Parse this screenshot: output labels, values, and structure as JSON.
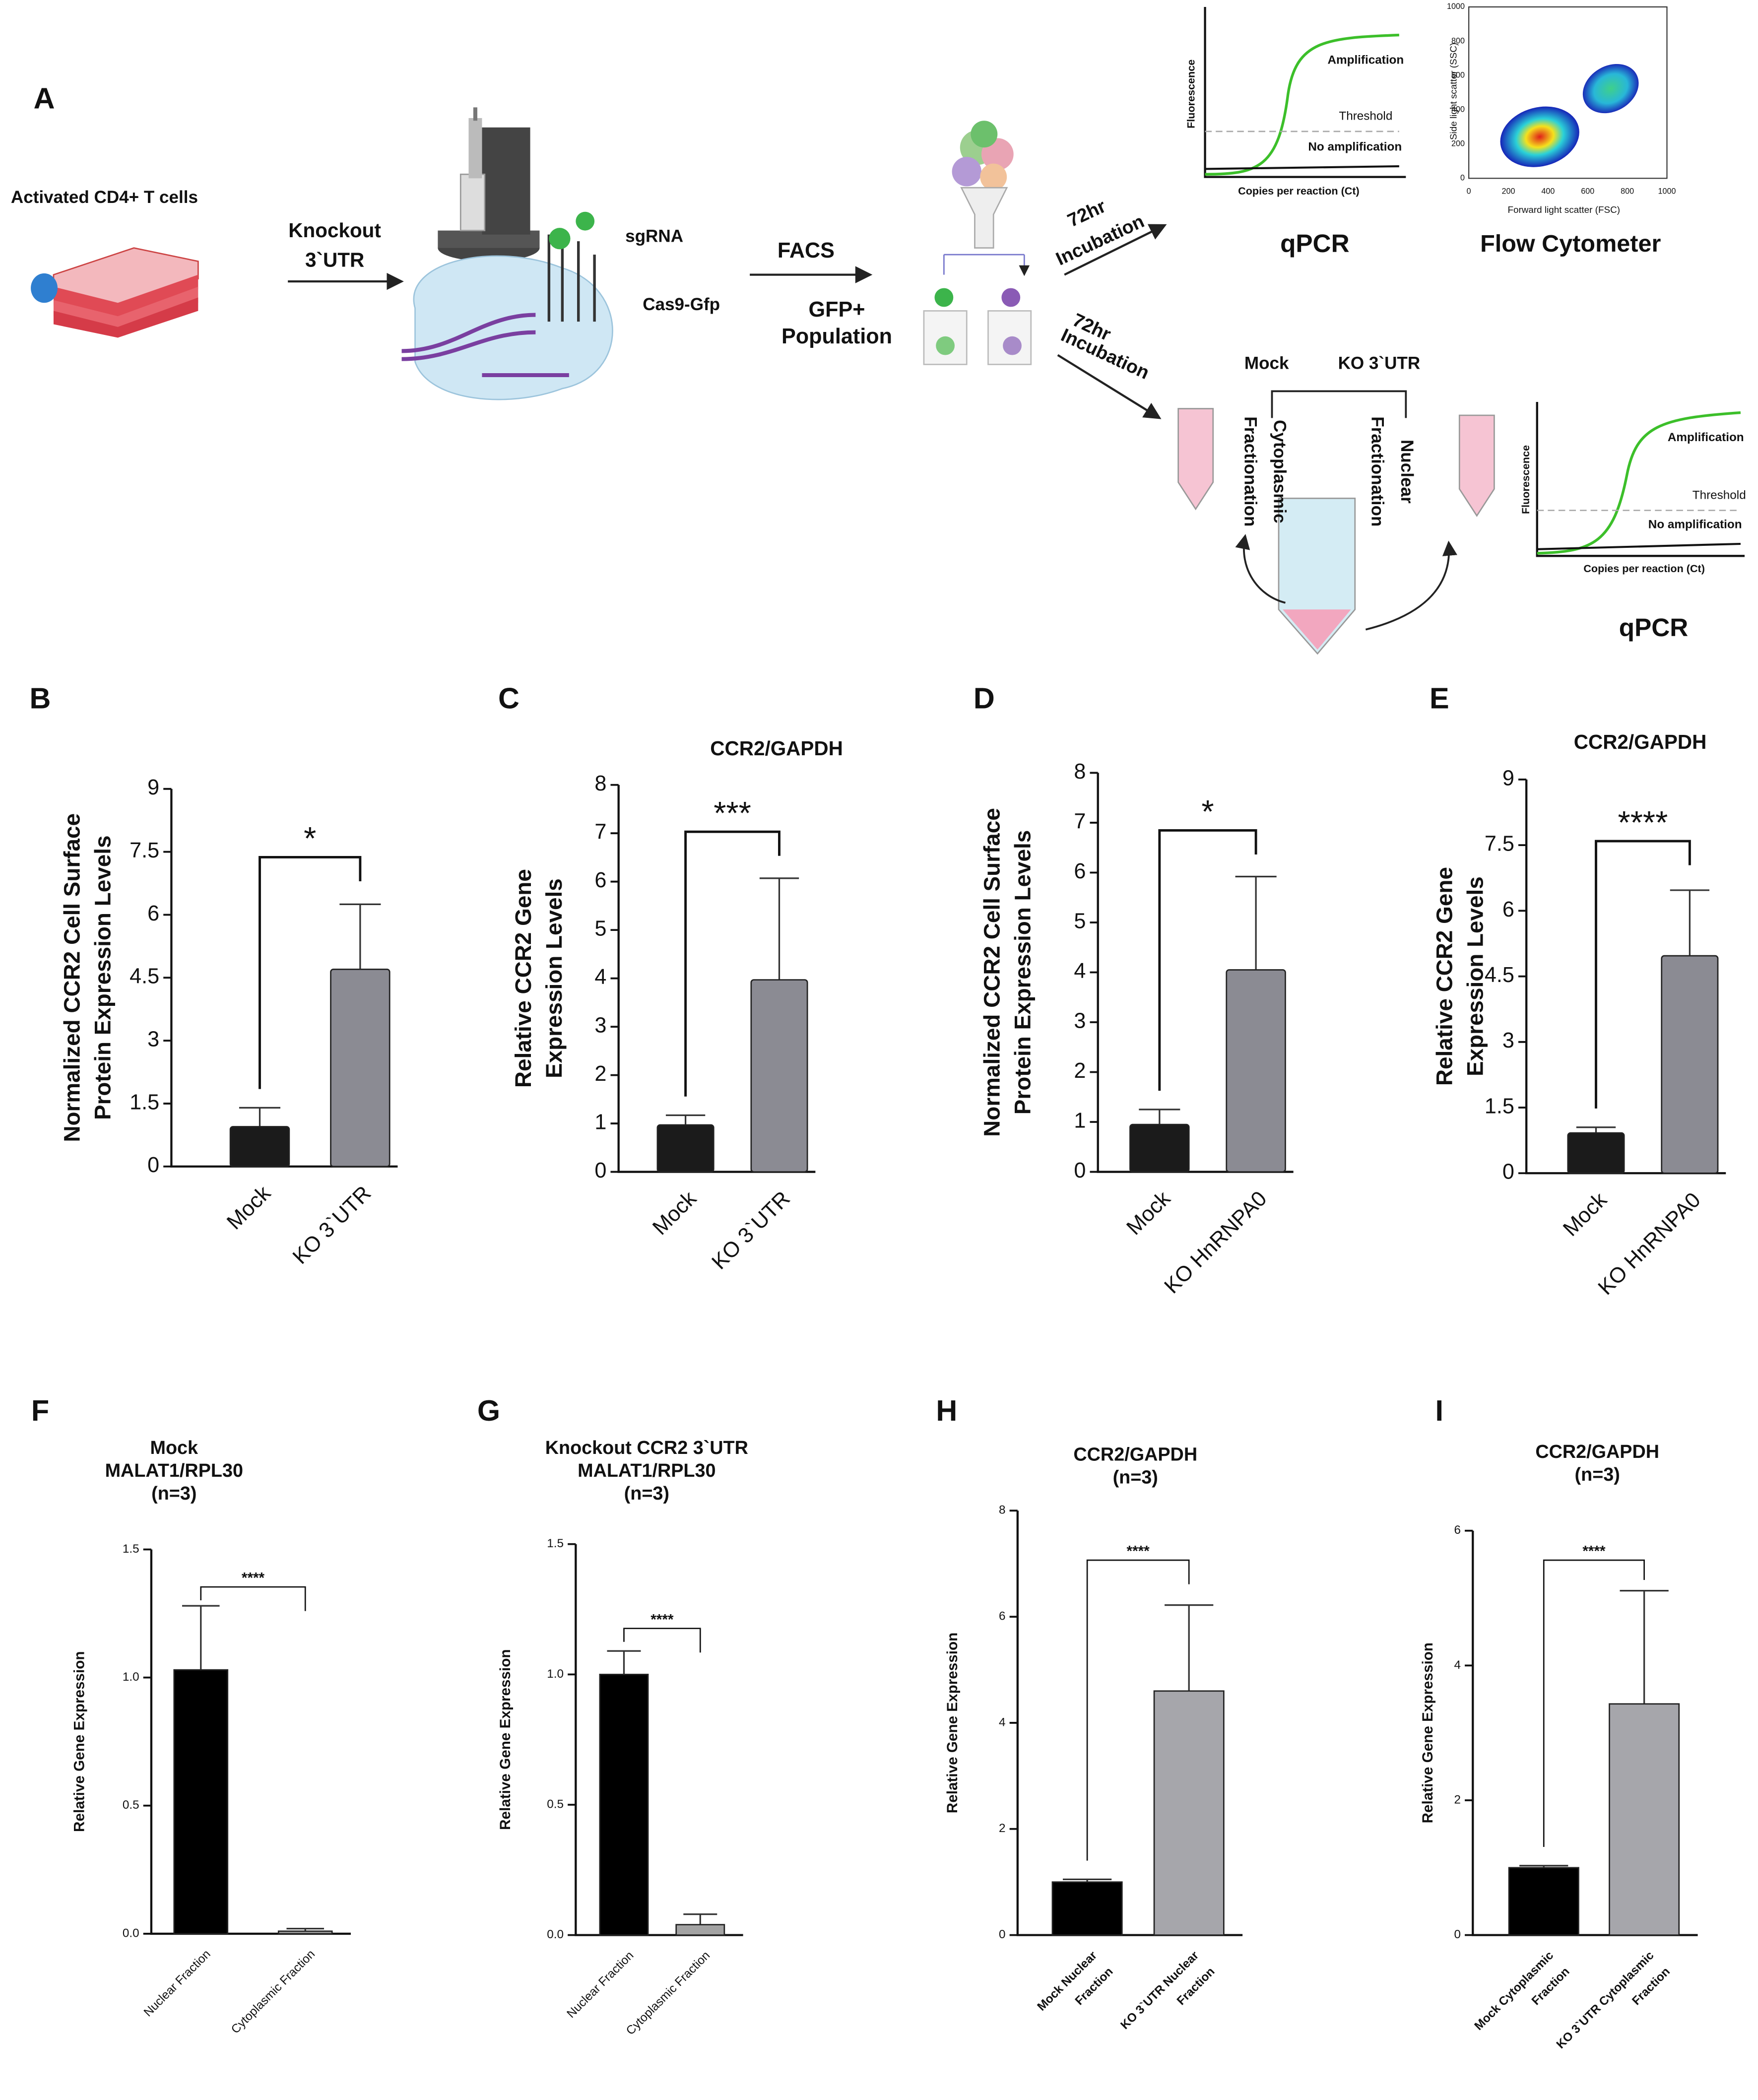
{
  "diagram": {
    "label": "A",
    "cells": "Activated CD4+ T cells",
    "knockout": [
      "Knockout",
      "3`UTR"
    ],
    "sgrna": "sgRNA",
    "cas9": "Cas9-Gfp",
    "facs": "FACS",
    "gfp": [
      "GFP+",
      "Population"
    ],
    "incubation_top": [
      "72hr",
      "Incubation"
    ],
    "incubation_bottom": [
      "72hr",
      "Incubation"
    ],
    "mock": "Mock",
    "ko": "KO 3`UTR",
    "cytoplasmic": [
      "Cytoplasmic",
      "Fractionation"
    ],
    "nuclear": [
      "Nuclear",
      "Fractionation"
    ],
    "qpcr_plots": [
      {
        "ylabel": "Fluorescence",
        "xlabel": "Copies per reaction (Ct)",
        "amplification": "Amplification",
        "threshold": "Threshold",
        "no_amplification": "No amplification",
        "caption": "qPCR"
      },
      {
        "ylabel": "Fluorescence",
        "xlabel": "Copies per reaction (Ct)",
        "amplification": "Amplification",
        "threshold": "Threshold",
        "no_amplification": "No amplification",
        "caption": "qPCR"
      }
    ],
    "flow": {
      "caption": "Flow Cytometer",
      "ylabel": "Side light scatter (SSC)",
      "xlabel": "Forward light scatter (FSC)",
      "xticks": [
        0,
        200,
        400,
        600,
        800,
        1000
      ],
      "yticks": [
        0,
        200,
        400,
        600,
        800,
        1000
      ]
    }
  },
  "chart_data": [
    {
      "type": "bar",
      "panel": "B",
      "ylabel": [
        "Normalized CCR2 Cell Surface",
        "Protein Expression Levels"
      ],
      "categories": [
        "Mock",
        "KO 3`UTR"
      ],
      "values": [
        0.95,
        4.7
      ],
      "errors": [
        0.45,
        1.55
      ],
      "colors": [
        "#1b1b1b",
        "#8b8b93"
      ],
      "ylim": [
        0,
        9
      ],
      "yticks": [
        0,
        1.5,
        3,
        4.5,
        6,
        7.5,
        9
      ],
      "significance": "*"
    },
    {
      "type": "bar",
      "panel": "C",
      "title": [
        "CCR2/GAPDH"
      ],
      "ylabel": [
        "Relative CCR2 Gene",
        "Expression Levels"
      ],
      "categories": [
        "Mock",
        "KO 3`UTR"
      ],
      "values": [
        0.97,
        3.97
      ],
      "errors": [
        0.2,
        2.1
      ],
      "colors": [
        "#1b1b1b",
        "#8b8b93"
      ],
      "ylim": [
        0,
        8
      ],
      "yticks": [
        0,
        1,
        2,
        3,
        4,
        5,
        6,
        7,
        8
      ],
      "significance": "***"
    },
    {
      "type": "bar",
      "panel": "D",
      "ylabel": [
        "Normalized CCR2 Cell Surface",
        "Protein Expression Levels"
      ],
      "categories": [
        "Mock",
        "KO HnRNPA0"
      ],
      "values": [
        0.95,
        4.05
      ],
      "errors": [
        0.3,
        1.87
      ],
      "colors": [
        "#1b1b1b",
        "#8b8b93"
      ],
      "ylim": [
        0,
        8
      ],
      "yticks": [
        0,
        1,
        2,
        3,
        4,
        5,
        6,
        7,
        8
      ],
      "significance": "*"
    },
    {
      "type": "bar",
      "panel": "E",
      "title": [
        "CCR2/GAPDH"
      ],
      "ylabel": [
        "Relative CCR2 Gene",
        "Expression Levels"
      ],
      "categories": [
        "Mock",
        "KO HnRNPA0"
      ],
      "values": [
        0.92,
        4.97
      ],
      "errors": [
        0.13,
        1.5
      ],
      "colors": [
        "#1b1b1b",
        "#8b8b93"
      ],
      "ylim": [
        0,
        9
      ],
      "yticks": [
        0,
        1.5,
        3,
        4.5,
        6,
        7.5,
        9
      ],
      "significance": "****"
    },
    {
      "type": "bar",
      "panel": "F",
      "title": [
        "Mock",
        "MALAT1/RPL30",
        "(n=3)"
      ],
      "ylabel": [
        "Relative Gene Expression"
      ],
      "categories": [
        "Nuclear Fraction",
        "Cytoplasmic Fraction"
      ],
      "values": [
        1.03,
        0.01
      ],
      "errors": [
        0.25,
        0.01
      ],
      "colors": [
        "#000000",
        "#a3a3a3"
      ],
      "ylim": [
        0,
        1.5
      ],
      "yticks": [
        {
          "value": 0,
          "label": "0.0"
        },
        0.5,
        {
          "value": 1,
          "label": "1.0"
        },
        1.5
      ],
      "significance": "****"
    },
    {
      "type": "bar",
      "panel": "G",
      "title": [
        "Knockout CCR2 3`UTR",
        "MALAT1/RPL30",
        "(n=3)"
      ],
      "ylabel": [
        "Relative Gene Expression"
      ],
      "categories": [
        "Nuclear Fraction",
        "Cytoplasmic Fraction"
      ],
      "values": [
        1.0,
        0.04
      ],
      "errors": [
        0.09,
        0.04
      ],
      "colors": [
        "#000000",
        "#a3a3a3"
      ],
      "ylim": [
        0,
        1.5
      ],
      "yticks": [
        {
          "value": 0,
          "label": "0.0"
        },
        0.5,
        {
          "value": 1,
          "label": "1.0"
        },
        1.5
      ],
      "significance": "****"
    },
    {
      "type": "bar",
      "panel": "H",
      "title": [
        "CCR2/GAPDH",
        "(n=3)"
      ],
      "ylabel": [
        "Relative Gene Expression"
      ],
      "categories": [
        [
          "Mock Nuclear",
          "Fraction"
        ],
        [
          "KO 3`UTR Nuclear",
          "Fraction"
        ]
      ],
      "values": [
        1.0,
        4.6
      ],
      "errors": [
        0.05,
        1.62
      ],
      "colors": [
        "#000000",
        "#a6a6ab"
      ],
      "ylim": [
        0,
        8
      ],
      "yticks": [
        0,
        2,
        4,
        6,
        8
      ],
      "significance": "****"
    },
    {
      "type": "bar",
      "panel": "I",
      "title": [
        "CCR2/GAPDH",
        "(n=3)"
      ],
      "ylabel": [
        "Relative Gene Expression"
      ],
      "categories": [
        [
          "Mock Cytoplasmic",
          "Fraction"
        ],
        [
          "KO 3`UTR Cytoplasmic",
          "Fraction"
        ]
      ],
      "values": [
        1.0,
        3.43
      ],
      "errors": [
        0.03,
        1.68
      ],
      "colors": [
        "#000000",
        "#a6a6ab"
      ],
      "ylim": [
        0,
        6
      ],
      "yticks": [
        0,
        2,
        4,
        6
      ],
      "significance": "****"
    }
  ]
}
